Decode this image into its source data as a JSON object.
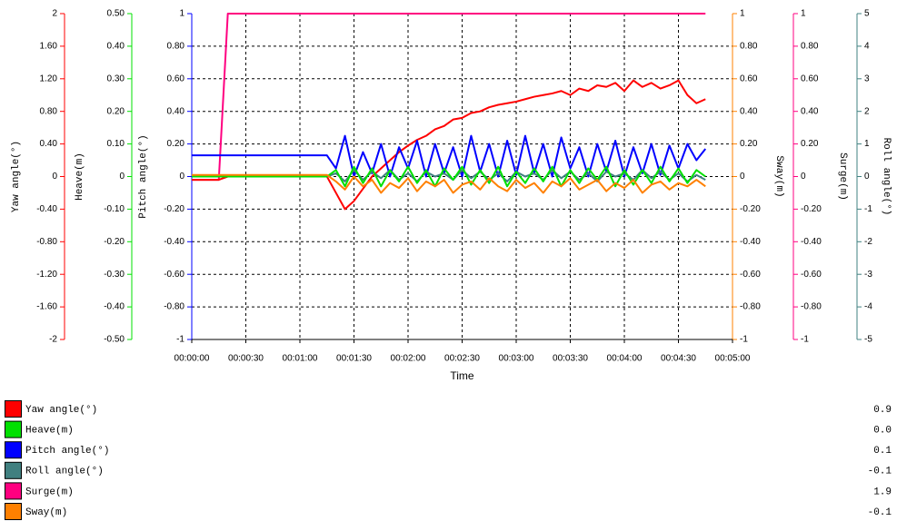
{
  "chart_data": {
    "type": "line",
    "xlabel": "Time",
    "xlim": [
      0,
      300
    ],
    "xticks": [
      {
        "value": 0,
        "label": "00:00:00"
      },
      {
        "value": 30,
        "label": "00:00:30"
      },
      {
        "value": 60,
        "label": "00:01:00"
      },
      {
        "value": 90,
        "label": "00:01:30"
      },
      {
        "value": 120,
        "label": "00:02:00"
      },
      {
        "value": 150,
        "label": "00:02:30"
      },
      {
        "value": 180,
        "label": "00:03:00"
      },
      {
        "value": 210,
        "label": "00:03:30"
      },
      {
        "value": 240,
        "label": "00:04:00"
      },
      {
        "value": 270,
        "label": "00:04:30"
      },
      {
        "value": 300,
        "label": "00:05:00"
      }
    ],
    "grid": true,
    "grid_axis": 2,
    "axes": [
      {
        "label": "Yaw angle(°)",
        "lim": [
          -2,
          2
        ],
        "ticks": [
          2,
          {
            "value": 1.6,
            "label": "1.60"
          },
          {
            "value": 1.2,
            "label": "1.20"
          },
          {
            "value": 0.8,
            "label": "0.80"
          },
          {
            "value": 0.4,
            "label": "0.40"
          },
          0,
          {
            "value": -0.4,
            "label": "-0.40"
          },
          {
            "value": -0.8,
            "label": "-0.80"
          },
          {
            "value": -1.2,
            "label": "-1.20"
          },
          {
            "value": -1.6,
            "label": "-1.60"
          },
          -2
        ]
      },
      {
        "label": "Heave(m)",
        "lim": [
          -0.5,
          0.5
        ],
        "ticks": [
          {
            "value": 0.5,
            "label": "0.50"
          },
          {
            "value": 0.4,
            "label": "0.40"
          },
          {
            "value": 0.3,
            "label": "0.30"
          },
          {
            "value": 0.2,
            "label": "0.20"
          },
          {
            "value": 0.1,
            "label": "0.10"
          },
          0,
          {
            "value": -0.1,
            "label": "-0.10"
          },
          {
            "value": -0.2,
            "label": "-0.20"
          },
          {
            "value": -0.3,
            "label": "-0.30"
          },
          {
            "value": -0.4,
            "label": "-0.40"
          },
          {
            "value": -0.5,
            "label": "-0.50"
          }
        ]
      },
      {
        "label": "Pitch angle(°)",
        "lim": [
          -1,
          1
        ],
        "ticks": [
          1,
          {
            "value": 0.8,
            "label": "0.80"
          },
          {
            "value": 0.6,
            "label": "0.60"
          },
          {
            "value": 0.4,
            "label": "0.40"
          },
          {
            "value": 0.2,
            "label": "0.20"
          },
          0,
          {
            "value": -0.2,
            "label": "-0.20"
          },
          {
            "value": -0.4,
            "label": "-0.40"
          },
          {
            "value": -0.6,
            "label": "-0.60"
          },
          {
            "value": -0.8,
            "label": "-0.80"
          },
          -1
        ]
      },
      {
        "label": "Sway(m)",
        "lim": [
          -1,
          1
        ],
        "ticks": [
          1,
          {
            "value": 0.8,
            "label": "0.80"
          },
          {
            "value": 0.6,
            "label": "0.60"
          },
          {
            "value": 0.4,
            "label": "0.40"
          },
          {
            "value": 0.2,
            "label": "0.20"
          },
          0,
          {
            "value": -0.2,
            "label": "-0.20"
          },
          {
            "value": -0.4,
            "label": "-0.40"
          },
          {
            "value": -0.6,
            "label": "-0.60"
          },
          {
            "value": -0.8,
            "label": "-0.80"
          },
          -1
        ]
      },
      {
        "label": "Surge(m)",
        "lim": [
          -1,
          1
        ],
        "ticks": [
          1,
          {
            "value": 0.8,
            "label": "0.80"
          },
          {
            "value": 0.6,
            "label": "0.60"
          },
          {
            "value": 0.4,
            "label": "0.40"
          },
          {
            "value": 0.2,
            "label": "0.20"
          },
          0,
          {
            "value": -0.2,
            "label": "-0.20"
          },
          {
            "value": -0.4,
            "label": "-0.40"
          },
          {
            "value": -0.6,
            "label": "-0.60"
          },
          {
            "value": -0.8,
            "label": "-0.80"
          },
          -1
        ]
      },
      {
        "label": "Roll angle(°)",
        "lim": [
          -5,
          5
        ],
        "ticks": [
          5,
          4,
          3,
          2,
          1,
          0,
          -1,
          -2,
          -3,
          -4,
          -5
        ]
      }
    ],
    "x": [
      0,
      5,
      10,
      15,
      20,
      25,
      30,
      35,
      40,
      45,
      50,
      55,
      60,
      65,
      70,
      75,
      80,
      85,
      90,
      95,
      100,
      105,
      110,
      115,
      120,
      125,
      130,
      135,
      140,
      145,
      150,
      155,
      160,
      165,
      170,
      175,
      180,
      185,
      190,
      195,
      200,
      205,
      210,
      215,
      220,
      225,
      230,
      235,
      240,
      245,
      250,
      255,
      260,
      265,
      270,
      275,
      280,
      285
    ],
    "series": [
      {
        "name": "Yaw angle(°)",
        "color": "#ff0000",
        "axis": 0,
        "current": 0.9,
        "values": [
          -0.04,
          -0.04,
          -0.04,
          -0.04,
          0,
          0,
          0,
          0,
          0,
          0,
          0,
          0,
          0,
          0,
          0,
          0,
          -0.2,
          -0.4,
          -0.3,
          -0.15,
          0,
          0.1,
          0.2,
          0.3,
          0.38,
          0.45,
          0.5,
          0.58,
          0.62,
          0.7,
          0.72,
          0.78,
          0.8,
          0.85,
          0.88,
          0.9,
          0.92,
          0.95,
          0.98,
          1.0,
          1.02,
          1.05,
          1.0,
          1.08,
          1.05,
          1.12,
          1.1,
          1.15,
          1.05,
          1.18,
          1.1,
          1.15,
          1.08,
          1.12,
          1.18,
          1.0,
          0.9,
          0.95
        ]
      },
      {
        "name": "Heave(m)",
        "color": "#00e000",
        "axis": 1,
        "current": {
          "value": 0,
          "label": "0.0"
        },
        "values": [
          0,
          0,
          0,
          0,
          0,
          0,
          0,
          0,
          0,
          0,
          0,
          0,
          0,
          0,
          0,
          0,
          0.02,
          -0.03,
          0.03,
          -0.02,
          0.025,
          -0.03,
          0.02,
          -0.015,
          0.03,
          -0.02,
          0.02,
          -0.03,
          0.025,
          -0.01,
          0.03,
          -0.025,
          0.02,
          -0.02,
          0.03,
          -0.03,
          0.015,
          -0.02,
          0.025,
          -0.015,
          0.03,
          -0.03,
          0.02,
          -0.02,
          0.025,
          -0.01,
          0.03,
          -0.03,
          0.02,
          -0.025,
          0.02,
          -0.02,
          0.03,
          -0.015,
          0.025,
          -0.02,
          0.02,
          0
        ]
      },
      {
        "name": "Pitch angle(°)",
        "color": "#0000ff",
        "axis": 2,
        "current": 0.1,
        "values": [
          0.13,
          0.13,
          0.13,
          0.13,
          0.13,
          0.13,
          0.13,
          0.13,
          0.13,
          0.13,
          0.13,
          0.13,
          0.13,
          0.13,
          0.13,
          0.13,
          0.05,
          0.25,
          0.0,
          0.15,
          0.02,
          0.2,
          0.0,
          0.18,
          0.05,
          0.22,
          0.0,
          0.2,
          0.02,
          0.18,
          0.0,
          0.25,
          0.03,
          0.2,
          0.0,
          0.22,
          0.01,
          0.25,
          0.02,
          0.2,
          0.0,
          0.24,
          0.05,
          0.18,
          0.0,
          0.2,
          0.03,
          0.22,
          0.0,
          0.18,
          0.02,
          0.2,
          0.01,
          0.19,
          0.05,
          0.2,
          0.1,
          0.17
        ]
      },
      {
        "name": "Roll angle(°)",
        "color": "#408080",
        "axis": 5,
        "current": -0.1,
        "values": [
          0,
          0,
          0,
          0,
          0,
          0,
          0,
          0,
          0,
          0,
          0,
          0,
          0,
          0,
          0,
          0,
          0.1,
          -0.15,
          0.2,
          -0.1,
          0.15,
          -0.05,
          0.2,
          -0.1,
          0.1,
          -0.15,
          0.15,
          0,
          0.1,
          -0.1,
          0.2,
          -0.05,
          0.15,
          -0.1,
          0.1,
          -0.15,
          0.15,
          0,
          0.1,
          -0.1,
          0.2,
          -0.05,
          0.15,
          -0.1,
          0.1,
          -0.15,
          0.15,
          0,
          0.1,
          -0.1,
          0.2,
          -0.05,
          0.15,
          -0.1,
          0.1,
          -0.15,
          0.05,
          -0.1
        ]
      },
      {
        "name": "Surge(m)",
        "color": "#ff0080",
        "axis": 4,
        "current": 1.9,
        "values": [
          -0.02,
          -0.02,
          -0.02,
          -0.02,
          1,
          1,
          1,
          1,
          1,
          1,
          1,
          1,
          1,
          1,
          1,
          1,
          1,
          1,
          1,
          1,
          1,
          1,
          1,
          1,
          1,
          1,
          1,
          1,
          1,
          1,
          1,
          1,
          1,
          1,
          1,
          1,
          1,
          1,
          1,
          1,
          1,
          1,
          1,
          1,
          1,
          1,
          1,
          1,
          1,
          1,
          1,
          1,
          1,
          1,
          1,
          1,
          1,
          1
        ]
      },
      {
        "name": "Sway(m)",
        "color": "#ff8000",
        "axis": 3,
        "current": -0.1,
        "values": [
          0.01,
          0.01,
          0.01,
          0.01,
          0.01,
          0.01,
          0.01,
          0.01,
          0.01,
          0.01,
          0.01,
          0.01,
          0.01,
          0.01,
          0.01,
          0.01,
          -0.03,
          -0.08,
          0.0,
          -0.06,
          -0.02,
          -0.1,
          -0.04,
          -0.07,
          -0.01,
          -0.09,
          -0.03,
          -0.06,
          -0.02,
          -0.1,
          -0.05,
          -0.03,
          -0.08,
          -0.01,
          -0.06,
          -0.09,
          -0.02,
          -0.07,
          -0.04,
          -0.1,
          -0.03,
          -0.06,
          -0.01,
          -0.08,
          -0.05,
          -0.02,
          -0.09,
          -0.04,
          -0.07,
          -0.02,
          -0.1,
          -0.05,
          -0.03,
          -0.08,
          -0.04,
          -0.06,
          -0.02,
          -0.06
        ]
      }
    ]
  }
}
